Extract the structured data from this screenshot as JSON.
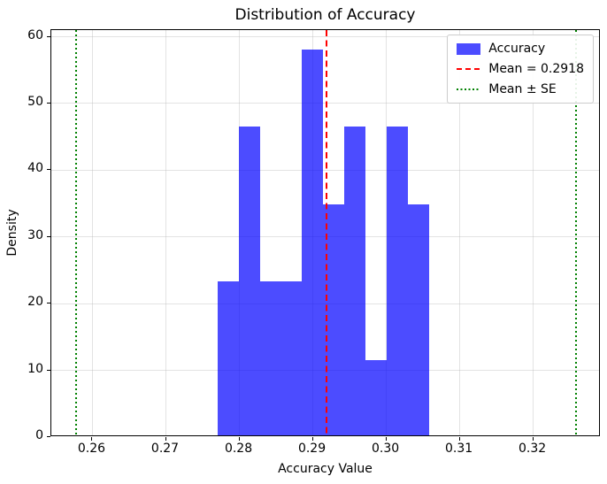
{
  "figure": {
    "title": "Distribution of Accuracy",
    "xlabel": "Accuracy Value",
    "ylabel": "Density"
  },
  "legend": {
    "position": "upper right",
    "items": [
      {
        "label": "Accuracy",
        "swatch": "blue-patch",
        "color": "#4d4dff"
      },
      {
        "label": "Mean = 0.2918",
        "swatch": "red-dashed-line",
        "color": "#ff0000"
      },
      {
        "label": "Mean ± SE",
        "swatch": "green-dotted-line",
        "color": "#008000"
      }
    ]
  },
  "chart_data": {
    "type": "bar",
    "subtype": "histogram",
    "title": "Distribution of Accuracy",
    "xlabel": "Accuracy Value",
    "ylabel": "Density",
    "bar_color": "#4d4dff",
    "bin_edges": [
      0.277,
      0.2799,
      0.2828,
      0.2856,
      0.2885,
      0.2914,
      0.2943,
      0.2972,
      0.3001,
      0.3029,
      0.3058
    ],
    "densities": [
      23.3,
      46.5,
      23.3,
      23.3,
      58.1,
      34.9,
      46.5,
      11.6,
      46.5,
      34.9
    ],
    "mean": 0.2918,
    "mean_line": {
      "x": 0.2918,
      "color": "#ff0000",
      "style": "dashed",
      "label": "Mean = 0.2918"
    },
    "se_lines": {
      "x": [
        0.2578,
        0.3258
      ],
      "color": "#008000",
      "style": "dotted",
      "label": "Mean ± SE"
    },
    "xlim": [
      0.2544,
      0.3292
    ],
    "ylim": [
      0,
      61.0
    ],
    "xticks": [
      0.26,
      0.27,
      0.28,
      0.29,
      0.3,
      0.31,
      0.32
    ],
    "xtick_labels": [
      "0.26",
      "0.27",
      "0.28",
      "0.29",
      "0.30",
      "0.31",
      "0.32"
    ],
    "yticks": [
      0,
      10,
      20,
      30,
      40,
      50,
      60
    ],
    "ytick_labels": [
      "0",
      "10",
      "20",
      "30",
      "40",
      "50",
      "60"
    ],
    "grid": true,
    "legend_position": "upper right"
  }
}
